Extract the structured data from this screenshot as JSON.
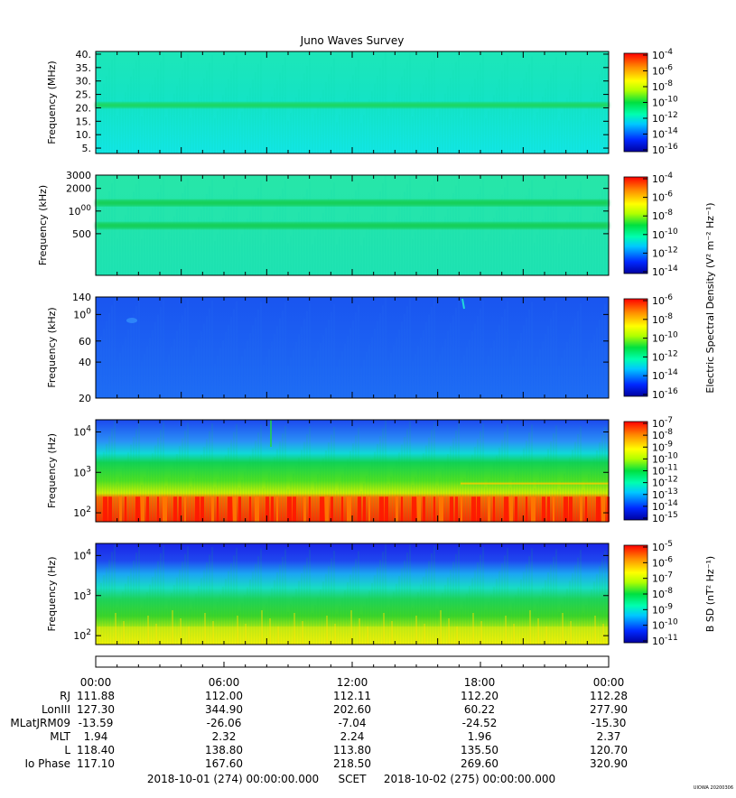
{
  "title": "Juno Waves Survey",
  "footer": {
    "start": "2018-10-01 (274) 00:00:00.000",
    "scet": "SCET",
    "end": "2018-10-02 (275) 00:00:00.000",
    "stamp": "UIOWA 20200306"
  },
  "shared_colorbar_label": "Electric Spectral Density (V² m⁻² Hz⁻¹)",
  "chart_data": [
    {
      "type": "heatmap",
      "name": "panel-1",
      "ylabel": "Frequency (MHz)",
      "yscale": "linear",
      "ylim": [
        3,
        41
      ],
      "yticks": [
        "5.",
        "10.",
        "15.",
        "20.",
        "25.",
        "30.",
        "35.",
        "40."
      ],
      "ytick_values": [
        5,
        10,
        15,
        20,
        25,
        30,
        35,
        40
      ],
      "colorbar": {
        "ticks": [
          "10-16",
          "10-14",
          "10-12",
          "10-10",
          "10-8",
          "10-6",
          "10-4"
        ],
        "label": ""
      },
      "features": [
        "uniform cyan background",
        "green band near 21 MHz"
      ]
    },
    {
      "type": "heatmap",
      "name": "panel-2",
      "ylabel": "Frequency (kHz)",
      "yscale": "log",
      "ylim": [
        140,
        3000
      ],
      "yticks": [
        "500",
        "1000",
        "2000",
        "3000"
      ],
      "ytick_values": [
        500,
        1000,
        2000,
        3000
      ],
      "colorbar": {
        "ticks": [
          "10-14",
          "10-12",
          "10-10",
          "10-8",
          "10-6",
          "10-4"
        ],
        "label": ""
      },
      "features": [
        "green bands near 650 kHz and 1300 kHz"
      ]
    },
    {
      "type": "heatmap",
      "name": "panel-3",
      "ylabel": "Frequency (kHz)",
      "yscale": "log",
      "ylim": [
        20,
        140
      ],
      "yticks": [
        "20",
        "40",
        "60",
        "100",
        "140"
      ],
      "ytick_values": [
        20,
        40,
        60,
        100,
        140
      ],
      "colorbar": {
        "ticks": [
          "10-16",
          "10-14",
          "10-12",
          "10-10",
          "10-8",
          "10-6"
        ],
        "label": "Electric Spectral Density"
      },
      "features": [
        "mostly blue background"
      ]
    },
    {
      "type": "heatmap",
      "name": "panel-4",
      "ylabel": "Frequency (Hz)",
      "yscale": "log",
      "ylim": [
        60,
        20000
      ],
      "yticks": [
        "10^2",
        "10^3",
        "10^4"
      ],
      "ytick_values": [
        100,
        1000,
        10000
      ],
      "colorbar": {
        "ticks": [
          "10-15",
          "10-14",
          "10-13",
          "10-12",
          "10-11",
          "10-10",
          "10-9",
          "10-8",
          "10-7"
        ],
        "label": ""
      },
      "features": [
        "red intensity below ~250 Hz",
        "green above",
        "blue above ~3 kHz"
      ]
    },
    {
      "type": "heatmap",
      "name": "panel-5",
      "ylabel": "Frequency (Hz)",
      "yscale": "log",
      "ylim": [
        60,
        20000
      ],
      "yticks": [
        "10^2",
        "10^3",
        "10^4"
      ],
      "ytick_values": [
        100,
        1000,
        10000
      ],
      "colorbar": {
        "ticks": [
          "10-11",
          "10-10",
          "10-9",
          "10-8",
          "10-7",
          "10-6",
          "10-5"
        ],
        "label": "B SD (nT² Hz⁻¹)"
      },
      "features": [
        "yellow at low frequencies",
        "green mid",
        "blue top"
      ]
    }
  ],
  "ephemeris": {
    "time_labels": [
      "00:00",
      "06:00",
      "12:00",
      "18:00",
      "00:00"
    ],
    "rows": [
      {
        "label": "RJ",
        "values": [
          "111.88",
          "112.00",
          "112.11",
          "112.20",
          "112.28"
        ]
      },
      {
        "label": "LonIII",
        "values": [
          "127.30",
          "344.90",
          "202.60",
          "60.22",
          "277.90"
        ]
      },
      {
        "label": "MLatJRM09",
        "values": [
          "-13.59",
          "-26.06",
          "-7.04",
          "-24.52",
          "-15.30"
        ]
      },
      {
        "label": "MLT",
        "values": [
          "1.94",
          "2.32",
          "2.24",
          "1.96",
          "2.37"
        ]
      },
      {
        "label": "L",
        "values": [
          "118.40",
          "138.80",
          "113.80",
          "135.50",
          "120.70"
        ]
      },
      {
        "label": "Io Phase",
        "values": [
          "117.10",
          "167.60",
          "218.50",
          "269.60",
          "320.90"
        ]
      }
    ]
  }
}
